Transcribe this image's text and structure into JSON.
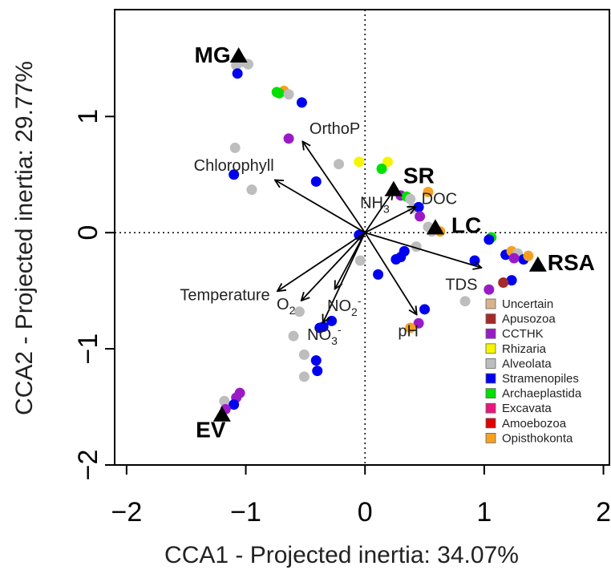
{
  "chart_data": {
    "type": "scatter",
    "xlabel": "CCA1 - Projected inertia: 34.07%",
    "ylabel": "CCA2 - Projected inertia: 29.77%",
    "xlim": [
      -2.1,
      2.05
    ],
    "ylim": [
      -2.0,
      1.92
    ],
    "x_ticks": [
      -2,
      -1,
      0,
      1,
      2
    ],
    "y_ticks": [
      -2,
      -1,
      0,
      1
    ],
    "x_tick_labels": [
      "−2",
      "−1",
      "0",
      "1",
      "2"
    ],
    "y_tick_labels": [
      "−2",
      "−1",
      "0",
      "1"
    ],
    "reference_lines": [
      {
        "axis": "x",
        "value": 0,
        "style": "dotted"
      },
      {
        "axis": "y",
        "value": 0,
        "style": "dotted"
      }
    ],
    "env_vectors": [
      {
        "name": "OrthoP",
        "x": -0.52,
        "y": 0.78
      },
      {
        "name": "Chlorophyll",
        "x": -0.75,
        "y": 0.45
      },
      {
        "name": "NH3",
        "x": 0.23,
        "y": 0.35
      },
      {
        "name": "DOC",
        "x": 0.42,
        "y": 0.22
      },
      {
        "name": "TDS",
        "x": 0.97,
        "y": -0.3
      },
      {
        "name": "Temperature",
        "x": -0.73,
        "y": -0.5
      },
      {
        "name": "O2",
        "x": -0.53,
        "y": -0.58
      },
      {
        "name": "NO2-",
        "x": -0.25,
        "y": -0.48
      },
      {
        "name": "NO3-",
        "x": -0.35,
        "y": -0.77
      },
      {
        "name": "pH",
        "x": 0.43,
        "y": -0.7
      }
    ],
    "env_labels": [
      {
        "ref": "OrthoP",
        "text": "OrthoP"
      },
      {
        "ref": "Chlorophyll",
        "text": "Chlorophyll"
      },
      {
        "ref": "NH3",
        "base": "NH",
        "sub": "3"
      },
      {
        "ref": "DOC",
        "text": "DOC"
      },
      {
        "ref": "TDS",
        "text": "TDS"
      },
      {
        "ref": "Temperature",
        "text": "Temperature"
      },
      {
        "ref": "O2",
        "base": "O",
        "sub": "2"
      },
      {
        "ref": "NO2-",
        "base": "NO",
        "sub": "2",
        "sup": "-"
      },
      {
        "ref": "NO3-",
        "base": "NO",
        "sub": "3",
        "sup": "-"
      },
      {
        "ref": "pH",
        "text": "pH"
      }
    ],
    "sites": [
      {
        "name": "MG",
        "x": -1.06,
        "y": 1.52
      },
      {
        "name": "SR",
        "x": 0.24,
        "y": 0.37
      },
      {
        "name": "LC",
        "x": 0.59,
        "y": 0.04
      },
      {
        "name": "RSA",
        "x": 1.45,
        "y": -0.28
      },
      {
        "name": "EV",
        "x": -1.2,
        "y": -1.57
      }
    ],
    "legend": {
      "position": "bottom-right",
      "entries": [
        {
          "name": "Uncertain",
          "color": "#d9b38c"
        },
        {
          "name": "Apusozoa",
          "color": "#a52a2a"
        },
        {
          "name": "CCTHK",
          "color": "#9a1bc6"
        },
        {
          "name": "Rhizaria",
          "color": "#f5f500"
        },
        {
          "name": "Alveolata",
          "color": "#bdbdbd"
        },
        {
          "name": "Stramenopiles",
          "color": "#0000f0"
        },
        {
          "name": "Archaeplastida",
          "color": "#00e000"
        },
        {
          "name": "Excavata",
          "color": "#e8177d"
        },
        {
          "name": "Amoebozoa",
          "color": "#e00000"
        },
        {
          "name": "Opisthokonta",
          "color": "#f5a020"
        }
      ]
    },
    "points": [
      {
        "x": -1.03,
        "y": 1.47,
        "group": "Alveolata"
      },
      {
        "x": -0.98,
        "y": 1.45,
        "group": "Alveolata"
      },
      {
        "x": -1.08,
        "y": 1.44,
        "group": "Alveolata"
      },
      {
        "x": -1.07,
        "y": 1.37,
        "group": "Stramenopiles"
      },
      {
        "x": -0.68,
        "y": 1.22,
        "group": "Opisthokonta"
      },
      {
        "x": -0.72,
        "y": 1.2,
        "group": "Archaeplastida"
      },
      {
        "x": -0.74,
        "y": 1.21,
        "group": "Archaeplastida"
      },
      {
        "x": -0.64,
        "y": 1.19,
        "group": "Alveolata"
      },
      {
        "x": -0.53,
        "y": 1.12,
        "group": "Stramenopiles"
      },
      {
        "x": -0.64,
        "y": 0.81,
        "group": "CCTHK"
      },
      {
        "x": -1.09,
        "y": 0.73,
        "group": "Alveolata"
      },
      {
        "x": -1.1,
        "y": 0.5,
        "group": "Stramenopiles"
      },
      {
        "x": -0.95,
        "y": 0.37,
        "group": "Alveolata"
      },
      {
        "x": -0.41,
        "y": 0.44,
        "group": "Stramenopiles"
      },
      {
        "x": -0.22,
        "y": 0.59,
        "group": "Alveolata"
      },
      {
        "x": -0.05,
        "y": 0.61,
        "group": "Rhizaria"
      },
      {
        "x": 0.19,
        "y": 0.61,
        "group": "Rhizaria"
      },
      {
        "x": 0.14,
        "y": 0.55,
        "group": "Archaeplastida"
      },
      {
        "x": 0.3,
        "y": 0.32,
        "group": "CCTHK"
      },
      {
        "x": 0.35,
        "y": 0.31,
        "group": "Archaeplastida"
      },
      {
        "x": 0.38,
        "y": 0.29,
        "group": "Alveolata"
      },
      {
        "x": 0.53,
        "y": 0.35,
        "group": "Opisthokonta"
      },
      {
        "x": 0.4,
        "y": 0.21,
        "group": "Alveolata"
      },
      {
        "x": 0.45,
        "y": 0.22,
        "group": "Stramenopiles"
      },
      {
        "x": 0.46,
        "y": 0.14,
        "group": "CCTHK"
      },
      {
        "x": 0.53,
        "y": 0.05,
        "group": "Alveolata"
      },
      {
        "x": 0.63,
        "y": 0.01,
        "group": "Opisthokonta"
      },
      {
        "x": 0.56,
        "y": 0.01,
        "group": "Alveolata"
      },
      {
        "x": 0.43,
        "y": -0.12,
        "group": "Alveolata"
      },
      {
        "x": 0.33,
        "y": -0.16,
        "group": "Stramenopiles"
      },
      {
        "x": 0.3,
        "y": -0.21,
        "group": "Stramenopiles"
      },
      {
        "x": 0.26,
        "y": -0.23,
        "group": "Stramenopiles"
      },
      {
        "x": -0.05,
        "y": -0.02,
        "group": "Stramenopiles"
      },
      {
        "x": -0.04,
        "y": -0.24,
        "group": "Alveolata"
      },
      {
        "x": 0.11,
        "y": -0.36,
        "group": "Stramenopiles"
      },
      {
        "x": 0.92,
        "y": -0.24,
        "group": "Stramenopiles"
      },
      {
        "x": 1.06,
        "y": -0.04,
        "group": "Archaeplastida"
      },
      {
        "x": 1.04,
        "y": -0.06,
        "group": "Stramenopiles"
      },
      {
        "x": 1.18,
        "y": -0.19,
        "group": "Stramenopiles"
      },
      {
        "x": 1.23,
        "y": -0.16,
        "group": "Opisthokonta"
      },
      {
        "x": 1.28,
        "y": -0.18,
        "group": "Alveolata"
      },
      {
        "x": 1.33,
        "y": -0.23,
        "group": "Stramenopiles"
      },
      {
        "x": 1.37,
        "y": -0.2,
        "group": "Opisthokonta"
      },
      {
        "x": 1.25,
        "y": -0.22,
        "group": "CCTHK"
      },
      {
        "x": 1.23,
        "y": -0.41,
        "group": "Stramenopiles"
      },
      {
        "x": 1.16,
        "y": -0.43,
        "group": "Apusozoa"
      },
      {
        "x": 1.04,
        "y": -0.49,
        "group": "CCTHK"
      },
      {
        "x": 0.84,
        "y": -0.59,
        "group": "Alveolata"
      },
      {
        "x": 0.5,
        "y": -0.66,
        "group": "Stramenopiles"
      },
      {
        "x": 0.45,
        "y": -0.78,
        "group": "CCTHK"
      },
      {
        "x": 0.38,
        "y": -0.82,
        "group": "Opisthokonta"
      },
      {
        "x": -0.28,
        "y": -0.76,
        "group": "Stramenopiles"
      },
      {
        "x": -0.35,
        "y": -0.81,
        "group": "Stramenopiles"
      },
      {
        "x": -0.38,
        "y": -0.82,
        "group": "Stramenopiles"
      },
      {
        "x": -0.55,
        "y": -0.68,
        "group": "Alveolata"
      },
      {
        "x": -0.6,
        "y": -0.89,
        "group": "Alveolata"
      },
      {
        "x": -0.41,
        "y": -1.1,
        "group": "Stramenopiles"
      },
      {
        "x": -0.4,
        "y": -1.19,
        "group": "Stramenopiles"
      },
      {
        "x": -0.51,
        "y": -1.05,
        "group": "Alveolata"
      },
      {
        "x": -0.51,
        "y": -1.24,
        "group": "Alveolata"
      },
      {
        "x": -1.05,
        "y": -1.38,
        "group": "CCTHK"
      },
      {
        "x": -1.08,
        "y": -1.42,
        "group": "CCTHK"
      },
      {
        "x": -1.18,
        "y": -1.45,
        "group": "Alveolata"
      },
      {
        "x": -1.1,
        "y": -1.48,
        "group": "Stramenopiles"
      },
      {
        "x": -1.17,
        "y": -1.52,
        "group": "CCTHK"
      }
    ]
  }
}
